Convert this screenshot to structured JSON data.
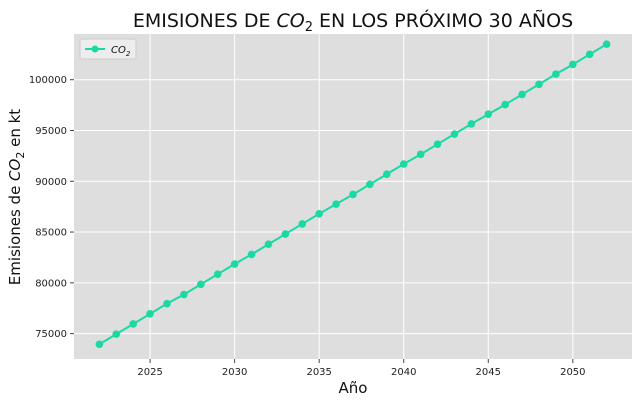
{
  "chart_data": {
    "type": "line",
    "title_prefix": "EMISIONES DE ",
    "title_var": "CO",
    "title_sub": "2",
    "title_suffix": " EN LOS PRÓXIMO 30 AÑOS",
    "xlabel": "Año",
    "ylabel_prefix": "Emisiones de ",
    "ylabel_var": "CO",
    "ylabel_sub": "2",
    "ylabel_suffix": " en kt",
    "xlim": [
      2020.5,
      2053.5
    ],
    "ylim": [
      72500,
      104500
    ],
    "xticks": [
      "2025",
      "2030",
      "2035",
      "2040",
      "2045",
      "2050"
    ],
    "yticks": [
      "75000",
      "80000",
      "85000",
      "90000",
      "95000",
      "100000"
    ],
    "grid": true,
    "legend_position": "upper-left",
    "series": [
      {
        "name_var": "CO",
        "name_sub": "2",
        "color": "#1ad9a3",
        "x": [
          2022,
          2023,
          2024,
          2025,
          2026,
          2027,
          2028,
          2029,
          2030,
          2031,
          2032,
          2033,
          2034,
          2035,
          2036,
          2037,
          2038,
          2039,
          2040,
          2041,
          2042,
          2043,
          2044,
          2045,
          2046,
          2047,
          2048,
          2049,
          2050,
          2051,
          2052
        ],
        "y": [
          73950,
          74950,
          75950,
          76950,
          77950,
          78850,
          79850,
          80850,
          81850,
          82800,
          83800,
          84800,
          85800,
          86800,
          87750,
          88700,
          89700,
          90700,
          91700,
          92650,
          93650,
          94650,
          95650,
          96600,
          97550,
          98550,
          99550,
          100550,
          101500,
          102500,
          103500
        ]
      }
    ]
  }
}
